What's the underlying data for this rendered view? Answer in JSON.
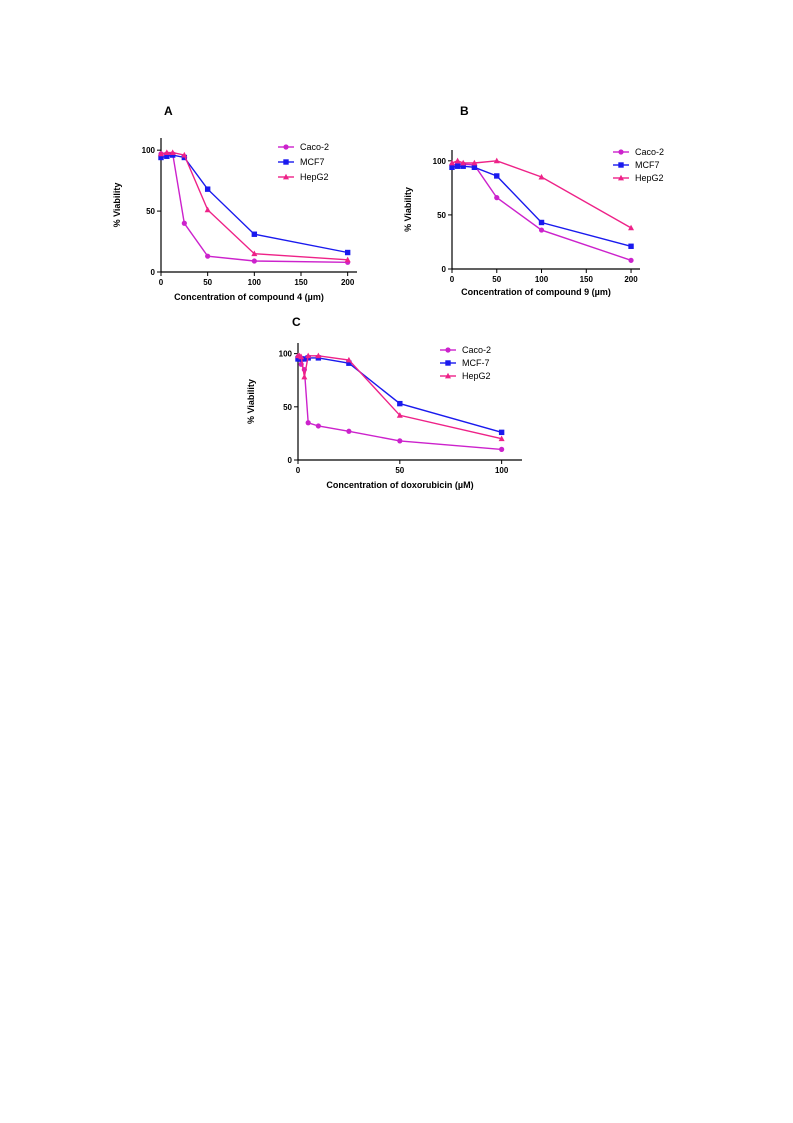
{
  "chart_data": [
    {
      "panel": "A",
      "type": "line",
      "xlabel": "Concentration of compound 4  (µm)",
      "ylabel": "% Viability",
      "xlim": [
        0,
        210
      ],
      "ylim": [
        0,
        110
      ],
      "xticks": [
        0,
        50,
        100,
        150,
        200
      ],
      "yticks": [
        0,
        50,
        100
      ],
      "legend": "top-right",
      "series": [
        {
          "name": "Caco-2",
          "color": "#cc22cc",
          "marker": "circle",
          "x": [
            0,
            6.25,
            12.5,
            25,
            50,
            100,
            200
          ],
          "y": [
            97,
            97,
            97,
            40,
            13,
            9,
            8
          ]
        },
        {
          "name": "MCF7",
          "color": "#1a1aee",
          "marker": "square",
          "x": [
            0,
            6.25,
            12.5,
            25,
            50,
            100,
            200
          ],
          "y": [
            94,
            95,
            96,
            94,
            68,
            31,
            16
          ]
        },
        {
          "name": "HepG2",
          "color": "#ee2288",
          "marker": "triangle",
          "x": [
            0,
            6.25,
            12.5,
            25,
            50,
            100,
            200
          ],
          "y": [
            97,
            98,
            98,
            96,
            51,
            15,
            10
          ]
        }
      ]
    },
    {
      "panel": "B",
      "type": "line",
      "xlabel": "Concentration of compound 9 (µm)",
      "ylabel": "% Viability",
      "xlim": [
        0,
        210
      ],
      "ylim": [
        0,
        110
      ],
      "xticks": [
        0,
        50,
        100,
        150,
        200
      ],
      "yticks": [
        0,
        50,
        100
      ],
      "legend": "top-right",
      "series": [
        {
          "name": "Caco-2",
          "color": "#cc22cc",
          "marker": "circle",
          "x": [
            0,
            6.25,
            12.5,
            25,
            50,
            100,
            200
          ],
          "y": [
            96,
            97,
            97,
            96,
            66,
            36,
            8
          ]
        },
        {
          "name": "MCF7",
          "color": "#1a1aee",
          "marker": "square",
          "x": [
            0,
            6.25,
            12.5,
            25,
            50,
            100,
            200
          ],
          "y": [
            94,
            95,
            95,
            94,
            86,
            43,
            21
          ]
        },
        {
          "name": "HepG2",
          "color": "#ee2288",
          "marker": "triangle",
          "x": [
            0,
            6.25,
            12.5,
            25,
            50,
            100,
            200
          ],
          "y": [
            98,
            100,
            98,
            98,
            100,
            85,
            38
          ]
        }
      ]
    },
    {
      "panel": "C",
      "type": "line",
      "xlabel": "Concentration of doxorubicin  (µM)",
      "ylabel": "% Viability",
      "xlim": [
        0,
        110
      ],
      "ylim": [
        0,
        110
      ],
      "xticks": [
        0,
        50,
        100
      ],
      "yticks": [
        0,
        50,
        100
      ],
      "legend": "top-right",
      "series": [
        {
          "name": "Caco-2",
          "color": "#cc22cc",
          "marker": "circle",
          "x": [
            0,
            0.78,
            1.56,
            3.12,
            5,
            10,
            25,
            50,
            100
          ],
          "y": [
            97,
            96,
            90,
            85,
            35,
            32,
            27,
            18,
            10
          ]
        },
        {
          "name": "MCF-7",
          "color": "#1a1aee",
          "marker": "square",
          "x": [
            0,
            0.78,
            1.56,
            3.12,
            5,
            10,
            25,
            50,
            100
          ],
          "y": [
            95,
            95,
            95,
            95,
            96,
            96,
            91,
            53,
            26
          ]
        },
        {
          "name": "HepG2",
          "color": "#ee2288",
          "marker": "triangle",
          "x": [
            0,
            0.78,
            1.56,
            3.12,
            5,
            10,
            25,
            50,
            100
          ],
          "y": [
            98,
            98,
            97,
            78,
            98,
            98,
            94,
            42,
            20
          ]
        }
      ]
    }
  ]
}
